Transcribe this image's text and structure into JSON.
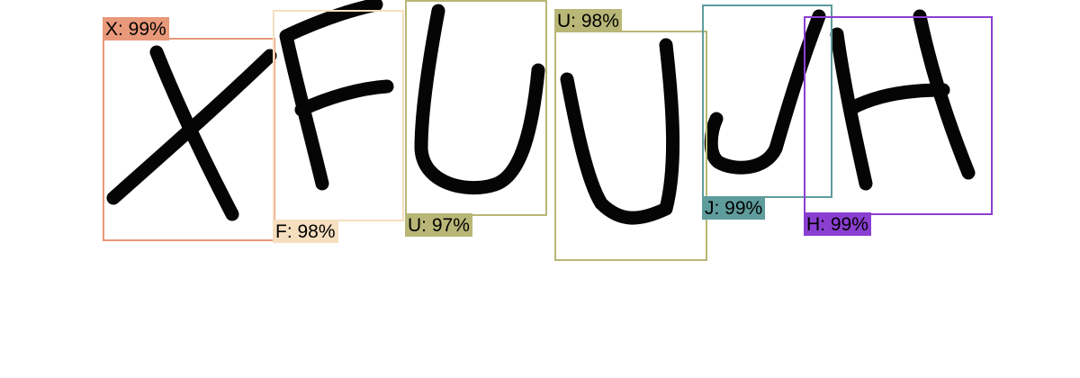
{
  "detections": [
    {
      "label": "X: 99%",
      "letter": "X",
      "color": "#e8997a"
    },
    {
      "label": "F: 98%",
      "letter": "F",
      "color": "#f5dfbf"
    },
    {
      "label": "U: 97%",
      "letter": "U",
      "color": "#b9b777"
    },
    {
      "label": "U: 98%",
      "letter": "U",
      "color": "#b9b777"
    },
    {
      "label": "J: 99%",
      "letter": "J",
      "color": "#5f9c9c"
    },
    {
      "label": "H: 99%",
      "letter": "H",
      "color": "#8a3fd1"
    }
  ]
}
